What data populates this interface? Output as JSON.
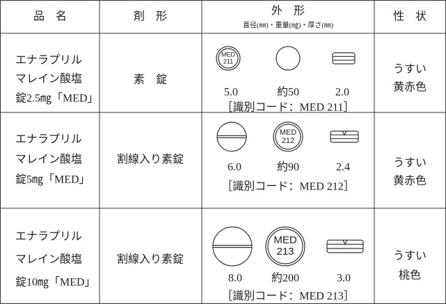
{
  "header": {
    "name": "品　名",
    "form": "剤　形",
    "appearance": "外　形",
    "appearance_sub": "直径(㎜)・重量(㎎)・厚さ(㎜)",
    "property": "性　状"
  },
  "rows": [
    {
      "name": [
        "エナラプリル",
        "マレイン酸塩",
        "錠2.5㎎「MED」"
      ],
      "form": "素　錠",
      "imprint": [
        "MED",
        "211"
      ],
      "diameter": "5.0",
      "weight": "約50",
      "thickness": "2.0",
      "code": "［識別コード：MED 211］",
      "property": [
        "うすい",
        "黄赤色"
      ]
    },
    {
      "name": [
        "エナラプリル",
        "マレイン酸塩",
        "錠5㎎「MED」"
      ],
      "form": "割線入り素錠",
      "imprint": [
        "MED",
        "212"
      ],
      "diameter": "6.0",
      "weight": "約90",
      "thickness": "2.4",
      "code": "［識別コード：MED 212］",
      "property": [
        "うすい",
        "黄赤色"
      ]
    },
    {
      "name": [
        "エナラプリル",
        "マレイン酸塩",
        "錠10㎎「MED」"
      ],
      "form": "割線入り素錠",
      "imprint": [
        "MED",
        "213"
      ],
      "diameter": "8.0",
      "weight": "約200",
      "thickness": "3.0",
      "code": "［識別コード：MED 213］",
      "property": [
        "うすい",
        "桃色"
      ]
    }
  ]
}
